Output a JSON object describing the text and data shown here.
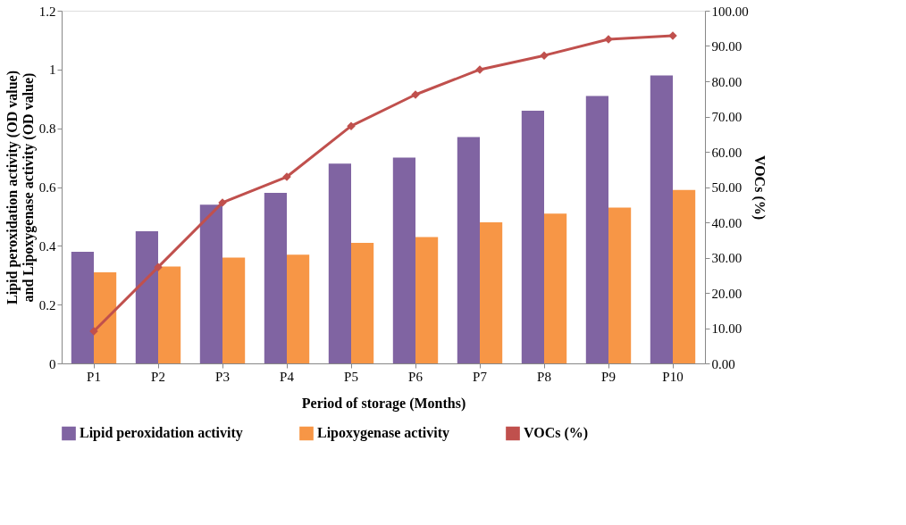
{
  "chart_data": {
    "type": "bar",
    "xlabel": "Period of storage (Months)",
    "ylabel": "Lipid peroxidation activity (OD value) and Lipoxygenase activity (OD value)",
    "y2label": "VOCs (%)",
    "categories": [
      "P1",
      "P2",
      "P3",
      "P4",
      "P5",
      "P6",
      "P7",
      "P8",
      "P9",
      "P10"
    ],
    "series": [
      {
        "name": "Lipid peroxidation activity",
        "color": "#8064a2",
        "values": [
          0.38,
          0.45,
          0.54,
          0.58,
          0.68,
          0.7,
          0.77,
          0.86,
          0.91,
          0.98
        ]
      },
      {
        "name": "Lipoxygenase activity",
        "color": "#f79646",
        "values": [
          0.31,
          0.33,
          0.36,
          0.37,
          0.41,
          0.43,
          0.48,
          0.51,
          0.53,
          0.59
        ]
      },
      {
        "name": "VOCs (%)",
        "color": "#c0504d",
        "type": "line",
        "axis": "y2",
        "marker": "diamond",
        "values": [
          9.1,
          27.3,
          45.6,
          52.9,
          67.3,
          76.2,
          83.3,
          87.3,
          91.9,
          92.9
        ]
      }
    ],
    "ylim": [
      0,
      1.2
    ],
    "yticks": [
      0,
      0.2,
      0.4,
      0.6,
      0.8,
      1,
      1.2
    ],
    "y2lim": [
      0,
      100
    ],
    "y2ticks": [
      {
        "value": 0,
        "label": "0.00"
      },
      {
        "value": 10,
        "label": "10.00"
      },
      {
        "value": 20,
        "label": "20.00"
      },
      {
        "value": 30,
        "label": "30.00"
      },
      {
        "value": 40,
        "label": "40.00"
      },
      {
        "value": 50,
        "label": "50.00"
      },
      {
        "value": 60,
        "label": "60.00"
      },
      {
        "value": 70,
        "label": "70.00"
      },
      {
        "value": 80,
        "label": "80.00"
      },
      {
        "value": 90,
        "label": "90.00"
      },
      {
        "value": 100,
        "label": "100.00"
      }
    ],
    "grid": false,
    "legend": "bottom"
  }
}
